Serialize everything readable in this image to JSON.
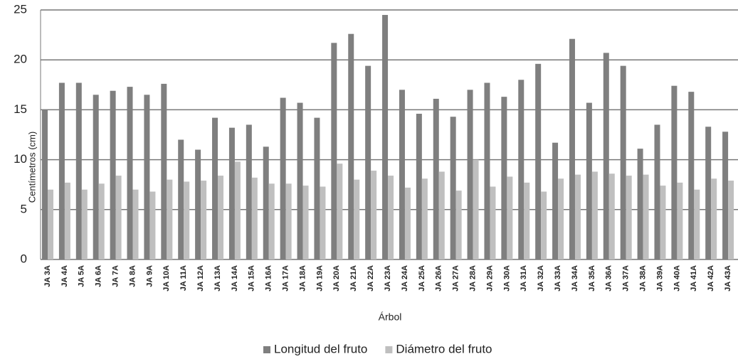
{
  "chart_data": {
    "type": "bar",
    "xlabel": "Árbol",
    "ylabel": "Centímetros (cm)",
    "categories": [
      "JA 3A",
      "JA 4A",
      "JA 5A",
      "JA 6A",
      "JA 7A",
      "JA 8A",
      "JA 9A",
      "JA 10A",
      "JA 11A",
      "JA 12A",
      "JA 13A",
      "JA 14A",
      "JA 15A",
      "JA 16A",
      "JA 17A",
      "JA 18A",
      "JA 19A",
      "JA 20A",
      "JA 21A",
      "JA 22A",
      "JA 23A",
      "JA 24A",
      "JA 25A",
      "JA 26A",
      "JA 27A",
      "JA 28A",
      "JA 29A",
      "JA 30A",
      "JA 31A",
      "JA 32A",
      "JA 33A",
      "JA 34A",
      "JA 35A",
      "JA 36A",
      "JA 37A",
      "JA 38A",
      "JA 39A",
      "JA 40A",
      "JA 41A",
      "JA 42A",
      "JA 43A"
    ],
    "series": [
      {
        "name": "Longitud del fruto",
        "color": "#7f7f7f",
        "values": [
          15.0,
          17.7,
          17.7,
          16.5,
          16.9,
          17.3,
          16.5,
          17.6,
          12.0,
          11.0,
          14.2,
          13.2,
          13.5,
          11.3,
          16.2,
          15.7,
          14.2,
          21.7,
          22.6,
          19.4,
          24.5,
          17.0,
          14.6,
          16.1,
          14.3,
          17.0,
          17.7,
          16.3,
          18.0,
          19.6,
          11.7,
          22.1,
          15.7,
          20.7,
          19.4,
          11.1,
          13.5,
          17.4,
          16.8,
          13.3,
          12.8
        ]
      },
      {
        "name": "Diámetro del fruto",
        "color": "#bfbfbf",
        "values": [
          7.0,
          7.7,
          7.0,
          7.6,
          8.4,
          7.0,
          6.8,
          8.0,
          7.8,
          7.9,
          8.4,
          9.8,
          8.2,
          7.6,
          7.6,
          7.4,
          7.3,
          9.6,
          8.0,
          8.9,
          8.4,
          7.2,
          8.1,
          8.8,
          6.9,
          10.0,
          7.3,
          8.3,
          7.7,
          6.8,
          8.1,
          8.5,
          8.8,
          8.6,
          8.4,
          8.5,
          7.4,
          7.7,
          7.0,
          8.1,
          7.9
        ]
      }
    ],
    "ylim": [
      0,
      25
    ],
    "yticks": [
      0,
      5,
      10,
      15,
      20,
      25
    ],
    "grid": true,
    "legend": "bottom"
  }
}
